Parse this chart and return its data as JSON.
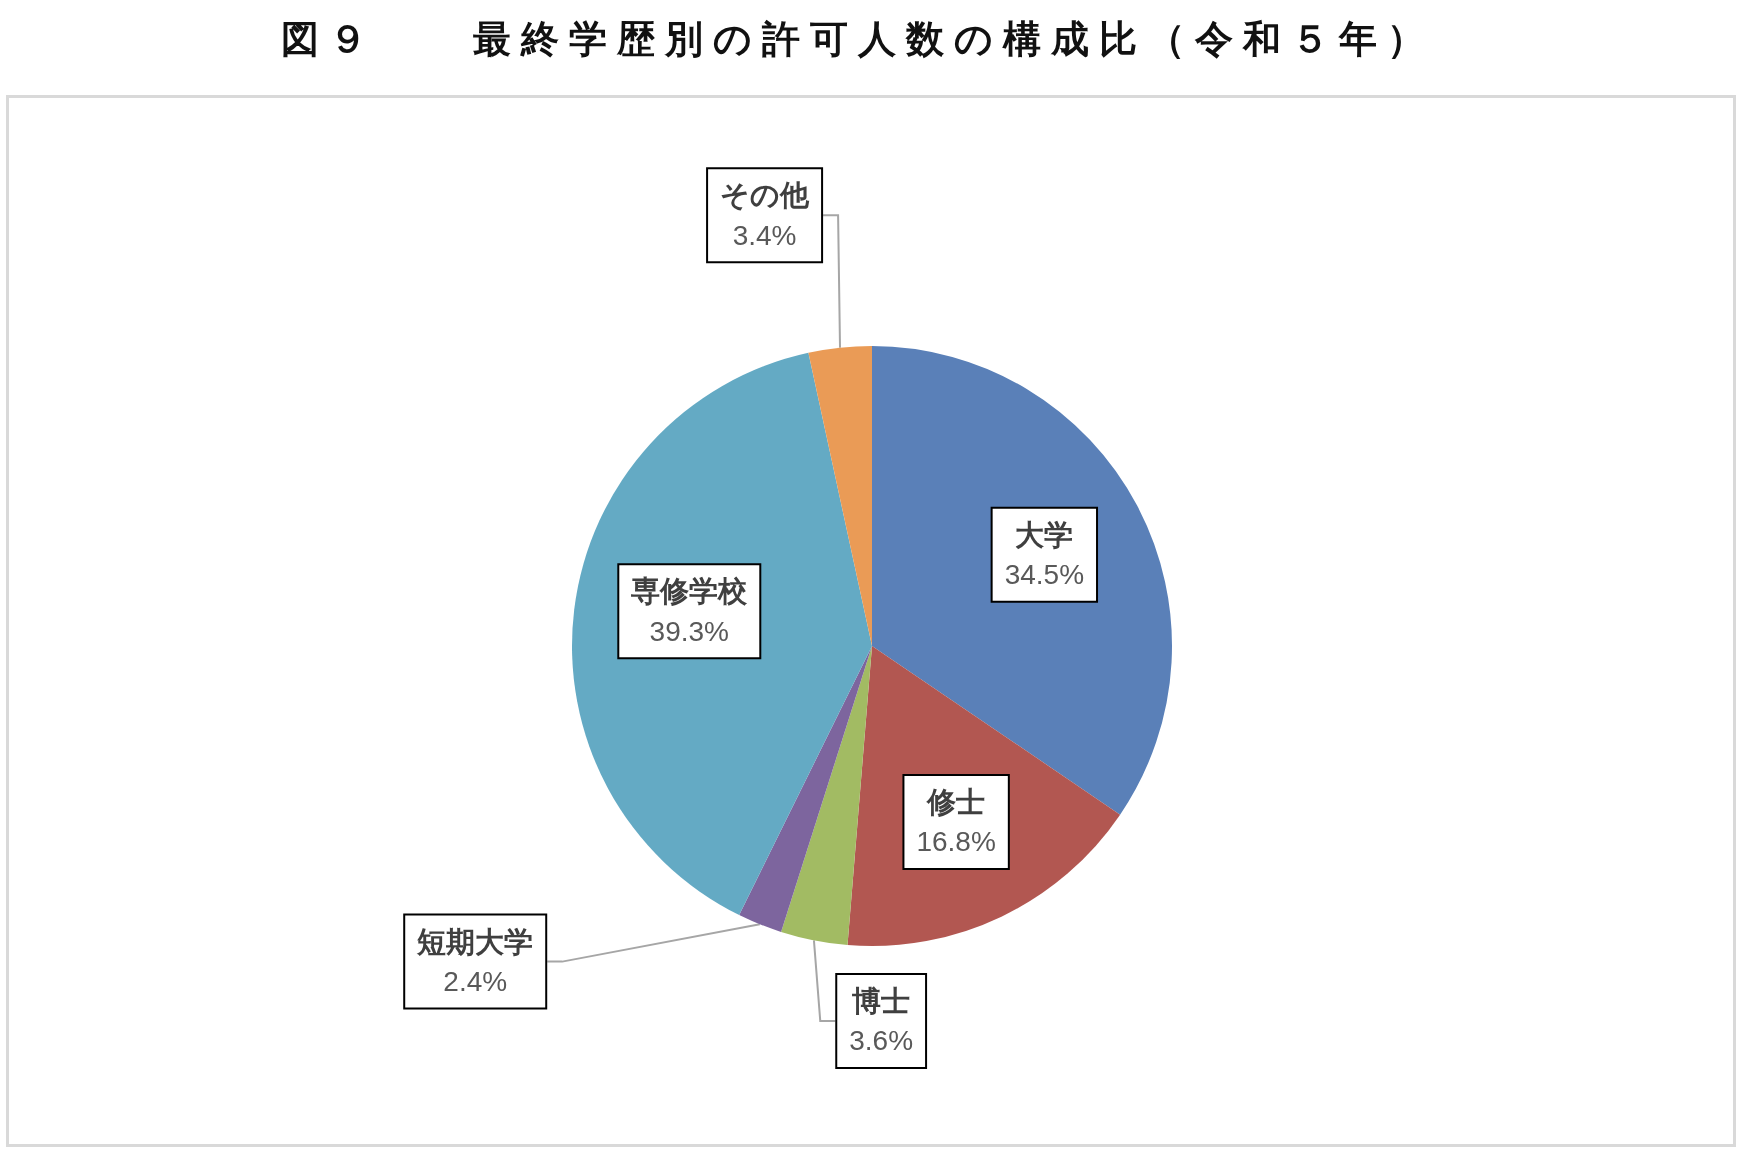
{
  "chart_data": {
    "type": "pie",
    "title": "図９　　最終学歴別の許可人数の構成比（令和５年）",
    "categories": [
      "大学",
      "修士",
      "博士",
      "短期大学",
      "専修学校",
      "その他"
    ],
    "values": [
      34.5,
      16.8,
      3.6,
      2.4,
      39.3,
      3.4
    ],
    "value_labels": [
      "34.5%",
      "16.8%",
      "3.6%",
      "2.4%",
      "39.3%",
      "3.4%"
    ],
    "colors": [
      "#5a80b8",
      "#b25751",
      "#a2bb63",
      "#7d659e",
      "#64aac4",
      "#ea9b56"
    ]
  }
}
